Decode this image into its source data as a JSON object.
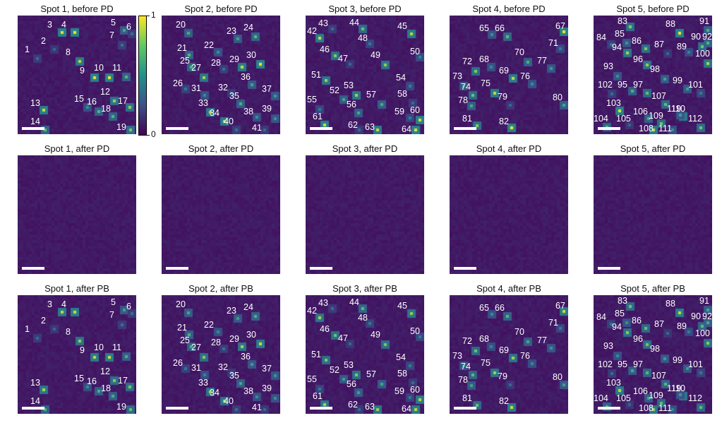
{
  "colorbar": {
    "max_label": "1",
    "min_label": "0",
    "colors": [
      "#440154",
      "#3b528b",
      "#21918c",
      "#5ec962",
      "#fde725"
    ]
  },
  "background_color": "#3d0f5c",
  "rows": [
    {
      "titles": [
        "Spot 1, before PD",
        "Spot 2, before PD",
        "Spot 3, before PD",
        "Spot 4, before PD",
        "Spot 5, before PD"
      ]
    },
    {
      "titles": [
        "Spot 1, after PD",
        "Spot 2, after PD",
        "Spot 3, after PD",
        "Spot 4, after PD",
        "Spot 5, after PD"
      ]
    },
    {
      "titles": [
        "Spot 1, after PB",
        "Spot 2, after PB",
        "Spot 3, after PB",
        "Spot 4, after PB",
        "Spot 5, after PB"
      ]
    }
  ],
  "spot_labels": [
    [
      "1",
      "2",
      "3",
      "4",
      "5",
      "6",
      "7",
      "8",
      "9",
      "10",
      "11",
      "12",
      "13",
      "14",
      "15",
      "16",
      "17",
      "18",
      "19"
    ],
    [
      "20",
      "21",
      "22",
      "23",
      "24",
      "25",
      "26",
      "27",
      "28",
      "29",
      "30",
      "31",
      "32",
      "33",
      "34",
      "35",
      "36",
      "37",
      "38",
      "39",
      "40",
      "41"
    ],
    [
      "42",
      "43",
      "44",
      "45",
      "46",
      "47",
      "48",
      "49",
      "50",
      "51",
      "52",
      "53",
      "54",
      "55",
      "56",
      "57",
      "58",
      "59",
      "60",
      "61",
      "62",
      "63",
      "64"
    ],
    [
      "65",
      "66",
      "67",
      "68",
      "69",
      "70",
      "71",
      "72",
      "73",
      "74",
      "75",
      "76",
      "77",
      "78",
      "79",
      "80",
      "81",
      "82"
    ],
    [
      "83",
      "84",
      "85",
      "86",
      "87",
      "88",
      "89",
      "90",
      "91",
      "92",
      "93",
      "94",
      "95",
      "96",
      "97",
      "98",
      "99",
      "100",
      "101",
      "102",
      "103",
      "104",
      "105",
      "106",
      "107",
      "108",
      "109",
      "110",
      "111",
      "112",
      "119"
    ]
  ]
}
